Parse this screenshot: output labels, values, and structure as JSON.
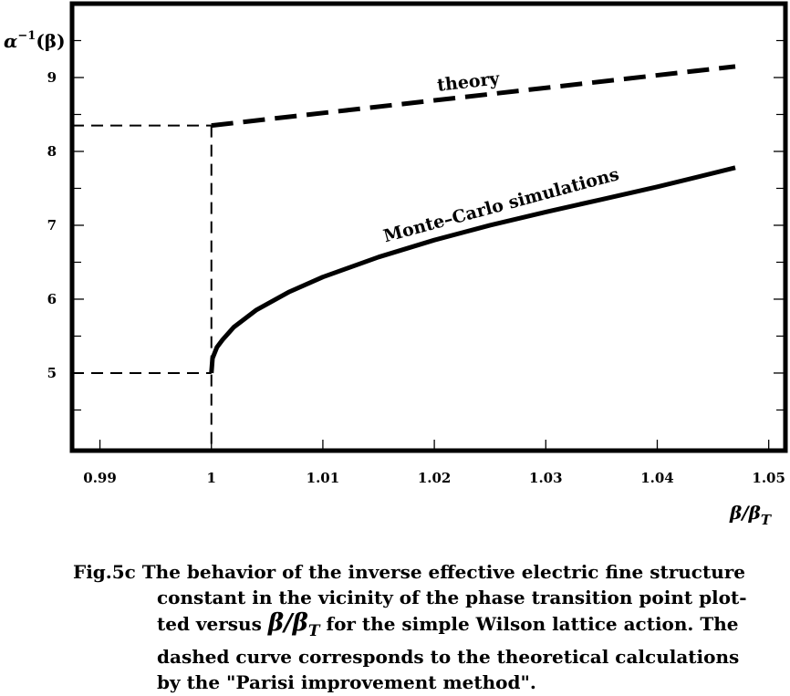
{
  "chart_data": {
    "type": "line",
    "xlabel": "β/β_T",
    "ylabel": "α⁻¹(β)",
    "xlim": [
      0.9875,
      1.0515
    ],
    "ylim": [
      3.95,
      10.0
    ],
    "grid": false,
    "x_ticks": [
      {
        "value": 0.99,
        "label": "0.99"
      },
      {
        "value": 1.0,
        "label": "1"
      },
      {
        "value": 1.01,
        "label": "1.01"
      },
      {
        "value": 1.02,
        "label": "1.02"
      },
      {
        "value": 1.03,
        "label": "1.03"
      },
      {
        "value": 1.04,
        "label": "1.04"
      },
      {
        "value": 1.05,
        "label": "1.05"
      }
    ],
    "y_ticks": [
      {
        "value": 5,
        "label": "5"
      },
      {
        "value": 6,
        "label": "6"
      },
      {
        "value": 7,
        "label": "7"
      },
      {
        "value": 8,
        "label": "8"
      },
      {
        "value": 9,
        "label": "9"
      }
    ],
    "y_minor_ticks": [
      4.5,
      5.5,
      6.5,
      7.5,
      8.5,
      9.5
    ],
    "series": [
      {
        "name": "theory",
        "style": "dashed",
        "x": [
          1.0,
          1.047
        ],
        "y": [
          8.35,
          9.15
        ]
      },
      {
        "name": "Monte–Carlo simulations",
        "style": "solid",
        "x": [
          1.0,
          1.0001,
          1.0005,
          1.001,
          1.002,
          1.004,
          1.007,
          1.01,
          1.015,
          1.02,
          1.025,
          1.03,
          1.035,
          1.04,
          1.047
        ],
        "y": [
          5.0,
          5.2,
          5.35,
          5.45,
          5.62,
          5.85,
          6.1,
          6.3,
          6.57,
          6.8,
          7.0,
          7.18,
          7.35,
          7.52,
          7.78
        ]
      }
    ],
    "reference_lines": [
      {
        "from": [
          0.9875,
          8.35
        ],
        "to": [
          1.0,
          8.35
        ]
      },
      {
        "from": [
          0.9875,
          5.0
        ],
        "to": [
          1.0,
          5.0
        ]
      },
      {
        "from": [
          1.0,
          8.35
        ],
        "to": [
          1.0,
          3.95
        ]
      }
    ]
  },
  "axis_labels": {
    "ylabel_main": "α",
    "ylabel_sup": "−1",
    "ylabel_arg": "(β)",
    "xlabel_beta": "β/β",
    "xlabel_sub": "T"
  },
  "annotations": {
    "theory": "theory",
    "monte_carlo": "Monte–Carlo simulations"
  },
  "caption": {
    "line1": "Fig.5c  The behavior of the inverse effective electric fine structure",
    "line2": "constant in the vicinity of the phase transition point plot-",
    "line3_pre": "ted versus ",
    "line3_math": "β/β",
    "line3_sub": "T",
    "line3_post": " for the simple Wilson lattice action. The",
    "line4": "dashed curve corresponds to the theoretical calculations",
    "line5": "by the \"Parisi improvement method\"."
  },
  "colors": {
    "ink": "#000000",
    "background": "#ffffff"
  }
}
